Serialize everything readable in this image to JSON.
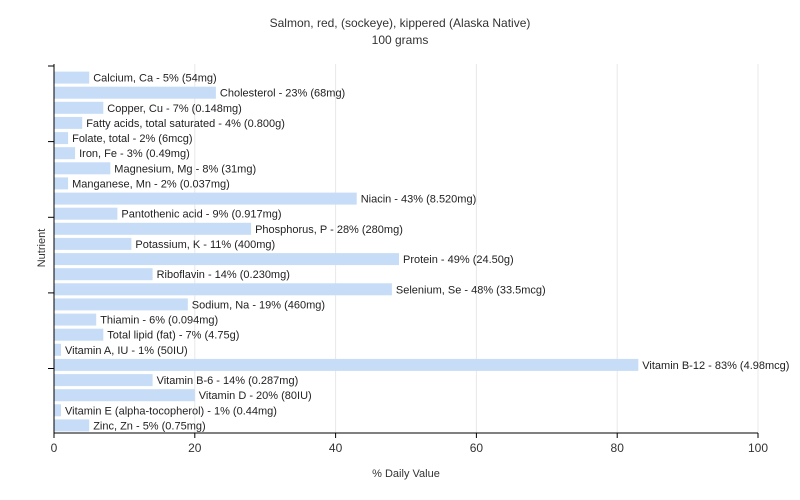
{
  "chart_data": {
    "type": "bar",
    "orientation": "horizontal",
    "title": "Salmon, red, (sockeye), kippered (Alaska Native)",
    "subtitle": "100 grams",
    "xlabel": "% Daily Value",
    "ylabel": "Nutrient",
    "xlim": [
      0,
      100
    ],
    "xticks": [
      0,
      20,
      40,
      60,
      80,
      100
    ],
    "grid": true,
    "bar_color": "#c6dcf7",
    "categories": [
      "Calcium, Ca",
      "Cholesterol",
      "Copper, Cu",
      "Fatty acids, total saturated",
      "Folate, total",
      "Iron, Fe",
      "Magnesium, Mg",
      "Manganese, Mn",
      "Niacin",
      "Pantothenic acid",
      "Phosphorus, P",
      "Potassium, K",
      "Protein",
      "Riboflavin",
      "Selenium, Se",
      "Sodium, Na",
      "Thiamin",
      "Total lipid (fat)",
      "Vitamin A, IU",
      "Vitamin B-12",
      "Vitamin B-6",
      "Vitamin D",
      "Vitamin E (alpha-tocopherol)",
      "Zinc, Zn"
    ],
    "values": [
      5,
      23,
      7,
      4,
      2,
      3,
      8,
      2,
      43,
      9,
      28,
      11,
      49,
      14,
      48,
      19,
      6,
      7,
      1,
      83,
      14,
      20,
      1,
      5
    ],
    "labels": [
      "Calcium, Ca - 5% (54mg)",
      "Cholesterol - 23% (68mg)",
      "Copper, Cu - 7% (0.148mg)",
      "Fatty acids, total saturated - 4% (0.800g)",
      "Folate, total - 2% (6mcg)",
      "Iron, Fe - 3% (0.49mg)",
      "Magnesium, Mg - 8% (31mg)",
      "Manganese, Mn - 2% (0.037mg)",
      "Niacin - 43% (8.520mg)",
      "Pantothenic acid - 9% (0.917mg)",
      "Phosphorus, P - 28% (280mg)",
      "Potassium, K - 11% (400mg)",
      "Protein - 49% (24.50g)",
      "Riboflavin - 14% (0.230mg)",
      "Selenium, Se - 48% (33.5mcg)",
      "Sodium, Na - 19% (460mg)",
      "Thiamin - 6% (0.094mg)",
      "Total lipid (fat) - 7% (4.75g)",
      "Vitamin A, IU - 1% (50IU)",
      "Vitamin B-12 - 83% (4.98mcg)",
      "Vitamin B-6 - 14% (0.287mg)",
      "Vitamin D - 20% (80IU)",
      "Vitamin E (alpha-tocopherol) - 1% (0.44mg)",
      "Zinc, Zn - 5% (0.75mg)"
    ]
  }
}
